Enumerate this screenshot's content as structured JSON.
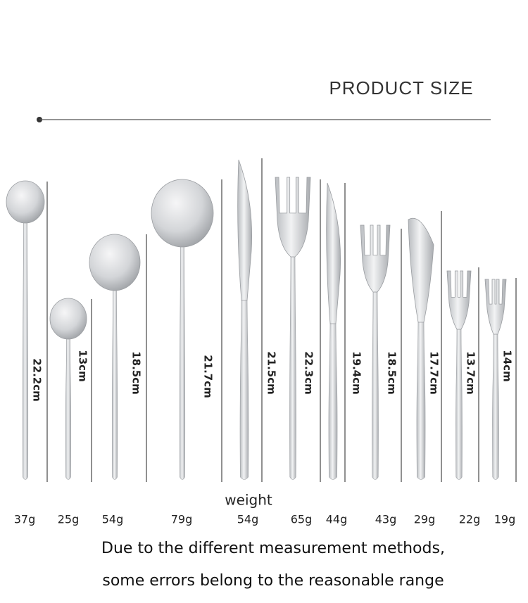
{
  "header": {
    "title": "PRODUCT SIZE"
  },
  "items": [
    {
      "length": "22.2cm",
      "weight": "37g"
    },
    {
      "length": "13cm",
      "weight": "25g"
    },
    {
      "length": "18.5cm",
      "weight": "54g"
    },
    {
      "length": "21.7cm",
      "weight": "79g"
    },
    {
      "length": "21.5cm",
      "weight": "54g"
    },
    {
      "length": "22.3cm",
      "weight": "65g"
    },
    {
      "length": "19.4cm",
      "weight": "44g"
    },
    {
      "length": "18.5cm",
      "weight": "43g"
    },
    {
      "length": "17.7cm",
      "weight": "29g"
    },
    {
      "length": "13.7cm",
      "weight": "22g"
    },
    {
      "length": "14cm",
      "weight": "19g"
    }
  ],
  "weight_label": "weight",
  "note": [
    "Due to the different measurement methods,",
    "some errors belong to the reasonable range"
  ]
}
